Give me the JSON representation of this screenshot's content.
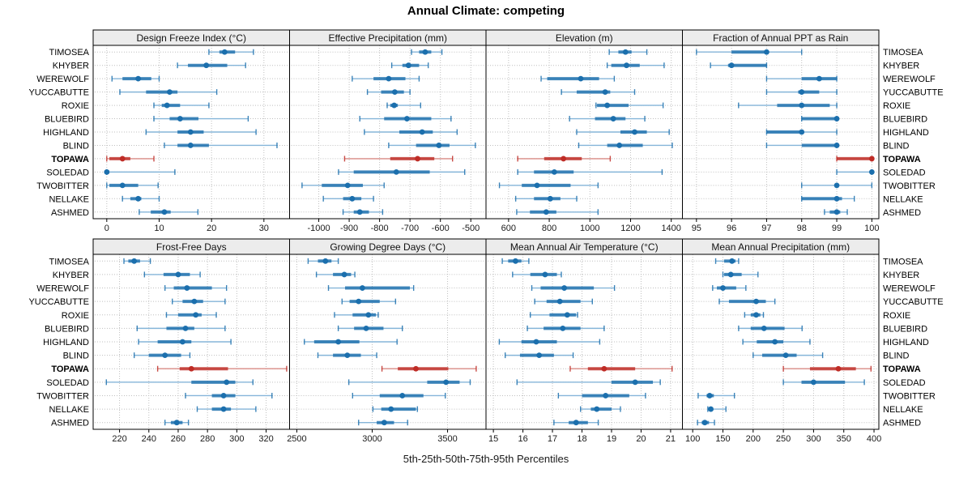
{
  "title": "Annual Climate: competing",
  "xlabel": "5th-25th-50th-75th-95th Percentiles",
  "sites": [
    "TIMOSEA",
    "KHYBER",
    "WEREWOLF",
    "YUCCABUTTE",
    "ROXIE",
    "BLUEBIRD",
    "HIGHLAND",
    "BLIND",
    "TOPAWA",
    "SOLEDAD",
    "TWOBITTER",
    "NELLAKE",
    "ASHMED"
  ],
  "highlight_site": "TOPAWA",
  "colors": {
    "blue": "#1b6fad",
    "blue_light": "#85b5d9",
    "red": "#bf2c26",
    "red_light": "#d98b85",
    "strip_bg": "#ececec",
    "grid": "#bfbfbf",
    "border": "#000000"
  },
  "chart_data": {
    "type": "dotplot-percentiles",
    "layout": "2x4",
    "grid": true,
    "percentile_labels": [
      "5th",
      "25th",
      "50th",
      "75th",
      "95th"
    ],
    "panels": [
      {
        "title": "Design Freeze Index (°C)",
        "ticks": [
          0,
          10,
          20,
          30
        ],
        "xlim": [
          -2.6,
          34.9
        ],
        "values": [
          [
            19.5,
            21.5,
            22.5,
            24.5,
            28
          ],
          [
            13.5,
            15.5,
            19,
            23,
            26.5
          ],
          [
            1,
            3,
            6,
            8.5,
            10
          ],
          [
            2.5,
            7.5,
            12,
            13.5,
            21
          ],
          [
            9,
            10.5,
            11.5,
            14,
            19.5
          ],
          [
            9,
            12,
            14,
            17.5,
            27
          ],
          [
            7.5,
            13.5,
            16,
            18.5,
            28.5
          ],
          [
            11,
            13.5,
            16,
            19.5,
            32.5
          ],
          [
            0,
            0.5,
            3,
            4.5,
            9
          ],
          [
            0,
            0,
            0,
            0.5,
            13
          ],
          [
            0,
            0.5,
            3,
            6,
            9.8
          ],
          [
            3,
            4.5,
            6,
            6.6,
            10
          ],
          [
            6.2,
            8.4,
            11,
            12.2,
            17.4
          ]
        ]
      },
      {
        "title": "Effective Precipitation (mm)",
        "ticks": [
          -1000,
          -900,
          -800,
          -700,
          -600,
          -500
        ],
        "xlim": [
          -1096,
          -450
        ],
        "values": [
          [
            -695,
            -670,
            -650,
            -630,
            -595
          ],
          [
            -760,
            -725,
            -705,
            -670,
            -640
          ],
          [
            -890,
            -820,
            -770,
            -715,
            -670
          ],
          [
            -840,
            -795,
            -750,
            -720,
            -700
          ],
          [
            -775,
            -765,
            -752,
            -740,
            -665
          ],
          [
            -865,
            -785,
            -710,
            -630,
            -565
          ],
          [
            -850,
            -735,
            -660,
            -625,
            -545
          ],
          [
            -770,
            -680,
            -605,
            -570,
            -485
          ],
          [
            -915,
            -765,
            -675,
            -620,
            -560
          ],
          [
            -935,
            -885,
            -745,
            -635,
            -520
          ],
          [
            -1055,
            -990,
            -905,
            -855,
            -785
          ],
          [
            -985,
            -920,
            -890,
            -860,
            -820
          ],
          [
            -920,
            -885,
            -865,
            -835,
            -790
          ]
        ]
      },
      {
        "title": "Elevation (m)",
        "ticks": [
          600,
          800,
          1000,
          1200,
          1400
        ],
        "xlim": [
          489,
          1455
        ],
        "values": [
          [
            1095,
            1140,
            1175,
            1205,
            1280
          ],
          [
            1085,
            1105,
            1180,
            1245,
            1365
          ],
          [
            760,
            790,
            955,
            1045,
            1120
          ],
          [
            860,
            935,
            1075,
            1100,
            1220
          ],
          [
            1030,
            1035,
            1085,
            1190,
            1360
          ],
          [
            900,
            1025,
            1115,
            1175,
            1270
          ],
          [
            935,
            1150,
            1220,
            1280,
            1390
          ],
          [
            945,
            1085,
            1145,
            1260,
            1405
          ],
          [
            645,
            775,
            870,
            960,
            1100
          ],
          [
            645,
            725,
            825,
            920,
            1355
          ],
          [
            555,
            665,
            740,
            905,
            1040
          ],
          [
            635,
            725,
            805,
            855,
            935
          ],
          [
            640,
            705,
            785,
            835,
            1040
          ]
        ]
      },
      {
        "title": "Fraction of Annual PPT as Rain",
        "ticks": [
          95,
          96,
          97,
          98,
          99,
          100
        ],
        "xlim": [
          94.6,
          100.2
        ],
        "values": [
          [
            95,
            96,
            97,
            97,
            98
          ],
          [
            95.4,
            95.9,
            96,
            97,
            97
          ],
          [
            97,
            98,
            98.5,
            99,
            99
          ],
          [
            97,
            97.9,
            98,
            98.5,
            99
          ],
          [
            96.2,
            97.3,
            98,
            98.8,
            99
          ],
          [
            98,
            98,
            99,
            99,
            99
          ],
          [
            97,
            97,
            98,
            98,
            99
          ],
          [
            97,
            98,
            99,
            99,
            99
          ],
          [
            99,
            99,
            100,
            100,
            100
          ],
          [
            99,
            100,
            100,
            100,
            100
          ],
          [
            98,
            99,
            99,
            99,
            100
          ],
          [
            98,
            98,
            99,
            99.15,
            99.5
          ],
          [
            98.65,
            98.8,
            99,
            99.1,
            99.3
          ]
        ]
      },
      {
        "title": "Frost-Free Days",
        "ticks": [
          220,
          240,
          260,
          280,
          300,
          320
        ],
        "xlim": [
          202,
          336
        ],
        "values": [
          [
            223,
            226,
            230,
            234,
            241
          ],
          [
            237,
            250,
            260,
            268,
            275
          ],
          [
            251,
            257,
            266,
            283,
            293
          ],
          [
            256,
            263,
            271,
            277,
            292
          ],
          [
            252,
            260,
            272,
            276,
            286
          ],
          [
            232,
            252,
            265,
            271,
            292
          ],
          [
            233,
            246,
            263,
            269,
            296
          ],
          [
            230,
            240,
            251,
            262,
            268
          ],
          [
            246,
            261,
            269,
            294,
            334
          ],
          [
            211,
            269,
            293,
            299,
            311
          ],
          [
            265,
            283,
            291,
            299,
            324
          ],
          [
            273,
            283,
            291,
            296,
            313
          ],
          [
            251,
            255,
            259,
            263,
            267
          ]
        ]
      },
      {
        "title": "Growing Degree Days (°C)",
        "ticks": [
          2500,
          3000,
          3500
        ],
        "xlim": [
          2452,
          3755
        ],
        "values": [
          [
            2575,
            2640,
            2690,
            2730,
            2775
          ],
          [
            2630,
            2740,
            2815,
            2860,
            2885
          ],
          [
            2710,
            2820,
            2935,
            3250,
            3275
          ],
          [
            2800,
            2850,
            2910,
            3050,
            3155
          ],
          [
            2750,
            2870,
            2975,
            3025,
            3040
          ],
          [
            2775,
            2880,
            2960,
            3075,
            3200
          ],
          [
            2550,
            2615,
            2775,
            2915,
            3165
          ],
          [
            2640,
            2740,
            2835,
            2925,
            3030
          ],
          [
            3065,
            3170,
            3290,
            3505,
            3690
          ],
          [
            2845,
            3365,
            3490,
            3580,
            3650
          ],
          [
            2870,
            3050,
            3200,
            3340,
            3485
          ],
          [
            3005,
            3060,
            3125,
            3290,
            3300
          ],
          [
            2910,
            3030,
            3080,
            3145,
            3235
          ]
        ]
      },
      {
        "title": "Mean Annual Air Temperature (°C)",
        "ticks": [
          15,
          16,
          17,
          18,
          19,
          20,
          21
        ],
        "xlim": [
          14.75,
          21.4
        ],
        "values": [
          [
            15.3,
            15.5,
            15.75,
            15.95,
            16.2
          ],
          [
            15.65,
            16.25,
            16.75,
            17.15,
            17.3
          ],
          [
            16.3,
            16.6,
            17.4,
            18.4,
            19.1
          ],
          [
            16.4,
            16.8,
            17.25,
            17.95,
            18.35
          ],
          [
            16.25,
            16.9,
            17.5,
            17.8,
            17.85
          ],
          [
            16.15,
            16.7,
            17.35,
            17.95,
            18.75
          ],
          [
            15.2,
            15.95,
            16.45,
            17.15,
            18.6
          ],
          [
            15.4,
            15.9,
            16.55,
            17.05,
            17.7
          ],
          [
            17.6,
            18.2,
            18.75,
            19.8,
            21.05
          ],
          [
            15.8,
            19.0,
            19.8,
            20.4,
            20.65
          ],
          [
            17.2,
            18.0,
            18.8,
            19.6,
            20.15
          ],
          [
            17.95,
            18.3,
            18.5,
            19.0,
            19.3
          ],
          [
            17.05,
            17.55,
            17.8,
            18.2,
            18.55
          ]
        ]
      },
      {
        "title": "Mean Annual Precipitation (mm)",
        "ticks": [
          100,
          150,
          200,
          250,
          300,
          350,
          400
        ],
        "xlim": [
          83,
          408
        ],
        "values": [
          [
            138,
            152,
            165,
            171,
            176
          ],
          [
            150,
            152,
            163,
            181,
            208
          ],
          [
            133,
            140,
            150,
            172,
            188
          ],
          [
            144,
            160,
            205,
            221,
            236
          ],
          [
            186,
            196,
            205,
            212,
            217
          ],
          [
            176,
            196,
            218,
            252,
            281
          ],
          [
            183,
            206,
            236,
            250,
            294
          ],
          [
            200,
            215,
            254,
            272,
            315
          ],
          [
            250,
            294,
            341,
            370,
            395
          ],
          [
            250,
            280,
            300,
            352,
            384
          ],
          [
            109,
            123,
            128,
            135,
            169
          ],
          [
            125,
            127,
            130,
            134,
            155
          ],
          [
            108,
            115,
            120,
            127,
            136
          ]
        ]
      }
    ]
  }
}
